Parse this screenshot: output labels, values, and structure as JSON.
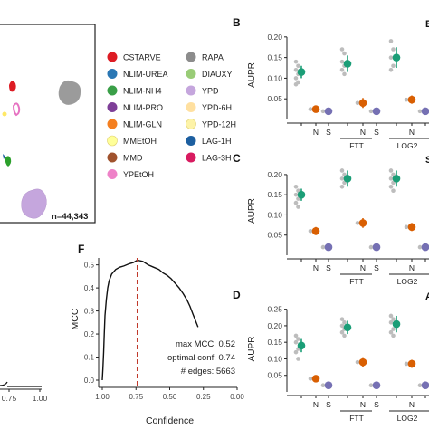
{
  "umap": {
    "count_label": "n=44,343",
    "blobs": [
      {
        "color": "#dd1c24"
      },
      {
        "color": "#9b9b9b"
      },
      {
        "color": "#e673c2"
      },
      {
        "color": "#ffe866"
      },
      {
        "color": "#2ca02c"
      },
      {
        "color": "#1d5fa0"
      },
      {
        "color": "#c5a6dd"
      }
    ]
  },
  "legend": {
    "items": [
      {
        "label": "CSTARVE",
        "color": "#dd1c24"
      },
      {
        "label": "NLIM-UREA",
        "color": "#2a77b4"
      },
      {
        "label": "NLIM-NH4",
        "color": "#3a9f48"
      },
      {
        "label": "NLIM-PRO",
        "color": "#7e3f98"
      },
      {
        "label": "NLIM-GLN",
        "color": "#f47f20"
      },
      {
        "label": "MMEtOH",
        "color": "#ffff99"
      },
      {
        "label": "MMD",
        "color": "#a0522d"
      },
      {
        "label": "YPEtOH",
        "color": "#ee82c8"
      },
      {
        "label": "RAPA",
        "color": "#8c8c8c"
      },
      {
        "label": "DIAUXY",
        "color": "#99cc77"
      },
      {
        "label": "YPD",
        "color": "#c5a6dd"
      },
      {
        "label": "YPD-6H",
        "color": "#ffe0a0"
      },
      {
        "label": "YPD-12H",
        "color": "#fdf3a8"
      },
      {
        "label": "LAG-1H",
        "color": "#1d5fa0"
      },
      {
        "label": "LAG-3H",
        "color": "#d81b60"
      }
    ]
  },
  "panel_e": {
    "x_ticks": [
      "0.75",
      "1.00"
    ]
  },
  "panel_f": {
    "letter": "F",
    "max_mcc": "max MCC: 0.52",
    "optimal_conf": "optimal conf: 0.74",
    "edges": "# edges: 5663"
  },
  "aupr_panels": [
    {
      "letter": "B",
      "title": "BE"
    },
    {
      "letter": "C",
      "title": "StARS"
    },
    {
      "letter": "D",
      "title": "AM"
    }
  ],
  "group_labels": {
    "ftt": "FTT",
    "log2": "LOG2"
  },
  "colors": {
    "green": "#1b9e77",
    "orange": "#d95f02",
    "purple": "#7570b3",
    "gray": "#bdbdbd"
  },
  "chart_data": [
    {
      "type": "line",
      "panel": "F",
      "xlabel": "Confidence",
      "ylabel": "MCC",
      "x_ticks": [
        "1.00",
        "0.75",
        "0.50",
        "0.25",
        "0.00"
      ],
      "y_ticks": [
        "0.0",
        "0.1",
        "0.2",
        "0.3",
        "0.4",
        "0.5"
      ],
      "xlim": [
        1.0,
        0.0
      ],
      "ylim": [
        0,
        0.53
      ],
      "reference_line": {
        "x": 0.74,
        "color": "#c0392b"
      },
      "x": [
        1.0,
        0.995,
        0.99,
        0.985,
        0.98,
        0.97,
        0.96,
        0.95,
        0.93,
        0.9,
        0.87,
        0.84,
        0.8,
        0.77,
        0.74,
        0.7,
        0.66,
        0.62,
        0.58,
        0.55,
        0.52,
        0.49,
        0.46,
        0.43,
        0.4,
        0.37,
        0.35,
        0.33,
        0.31,
        0.29
      ],
      "y": [
        0.0,
        0.05,
        0.12,
        0.2,
        0.28,
        0.35,
        0.4,
        0.43,
        0.46,
        0.48,
        0.49,
        0.495,
        0.505,
        0.51,
        0.52,
        0.515,
        0.5,
        0.49,
        0.48,
        0.465,
        0.455,
        0.44,
        0.42,
        0.4,
        0.375,
        0.345,
        0.32,
        0.29,
        0.26,
        0.23
      ]
    },
    {
      "type": "scatter",
      "panel": "B",
      "title": "BE",
      "ylabel": "AUPR",
      "y_ticks": [
        "0.05",
        "0.10",
        "0.15",
        "0.20"
      ],
      "ylim": [
        0.0,
        0.215
      ],
      "x_ticks": [
        "N",
        "S",
        "N",
        "S",
        "N"
      ],
      "groups": [
        "FTT",
        "LOG2"
      ],
      "series": [
        {
          "points": [
            {
              "pos": 1,
              "color": "green",
              "value": 0.115,
              "err": 0.015,
              "raw": [
                0.14,
                0.13,
                0.12,
                0.11,
                0.1,
                0.09,
                0.085
              ]
            },
            {
              "pos": 2,
              "color": "orange",
              "value": 0.025,
              "err": 0.004
            },
            {
              "pos": 3,
              "color": "purple",
              "value": 0.02,
              "err": 0.003
            },
            {
              "pos": 4,
              "color": "green",
              "value": 0.135,
              "err": 0.02,
              "raw": [
                0.17,
                0.16,
                0.14,
                0.13,
                0.12,
                0.11
              ]
            },
            {
              "pos": 5,
              "color": "orange",
              "value": 0.04,
              "err": 0.012
            },
            {
              "pos": 6,
              "color": "purple",
              "value": 0.02,
              "err": 0.003
            },
            {
              "pos": 7,
              "color": "green",
              "value": 0.15,
              "err": 0.025,
              "raw": [
                0.19,
                0.17,
                0.15,
                0.13,
                0.12
              ]
            },
            {
              "pos": 8,
              "color": "orange",
              "value": 0.048,
              "err": 0.01
            },
            {
              "pos": 9,
              "color": "purple",
              "value": 0.02,
              "err": 0.003
            }
          ]
        }
      ]
    },
    {
      "type": "scatter",
      "panel": "C",
      "title": "StARS",
      "ylabel": "AUPR",
      "y_ticks": [
        "0.05",
        "0.10",
        "0.15",
        "0.20"
      ],
      "ylim": [
        0.0,
        0.22
      ],
      "x_ticks": [
        "N",
        "S",
        "N",
        "S",
        "N"
      ],
      "groups": [
        "FTT",
        "LOG2"
      ],
      "series": [
        {
          "points": [
            {
              "pos": 1,
              "color": "green",
              "value": 0.15,
              "err": 0.015,
              "raw": [
                0.17,
                0.16,
                0.15,
                0.14,
                0.13,
                0.12
              ]
            },
            {
              "pos": 2,
              "color": "orange",
              "value": 0.06,
              "err": 0.01
            },
            {
              "pos": 3,
              "color": "purple",
              "value": 0.02,
              "err": 0.003
            },
            {
              "pos": 4,
              "color": "green",
              "value": 0.19,
              "err": 0.02,
              "raw": [
                0.21,
                0.2,
                0.19,
                0.18,
                0.17
              ]
            },
            {
              "pos": 5,
              "color": "orange",
              "value": 0.08,
              "err": 0.012
            },
            {
              "pos": 6,
              "color": "purple",
              "value": 0.02,
              "err": 0.003
            },
            {
              "pos": 7,
              "color": "green",
              "value": 0.19,
              "err": 0.02,
              "raw": [
                0.21,
                0.2,
                0.19,
                0.18,
                0.17,
                0.16
              ]
            },
            {
              "pos": 8,
              "color": "orange",
              "value": 0.07,
              "err": 0.01
            },
            {
              "pos": 9,
              "color": "purple",
              "value": 0.02,
              "err": 0.003
            }
          ]
        }
      ]
    },
    {
      "type": "scatter",
      "panel": "D",
      "title": "AM",
      "ylabel": "AUPR",
      "y_ticks": [
        "0.05",
        "0.10",
        "0.15",
        "0.20",
        "0.25"
      ],
      "ylim": [
        0.0,
        0.26
      ],
      "x_ticks": [
        "N",
        "S",
        "N",
        "S",
        "N"
      ],
      "groups": [
        "FTT",
        "LOG2"
      ],
      "series": [
        {
          "points": [
            {
              "pos": 1,
              "color": "green",
              "value": 0.14,
              "err": 0.02,
              "raw": [
                0.17,
                0.16,
                0.15,
                0.13,
                0.12,
                0.1
              ]
            },
            {
              "pos": 2,
              "color": "orange",
              "value": 0.04,
              "err": 0.008
            },
            {
              "pos": 3,
              "color": "purple",
              "value": 0.02,
              "err": 0.003
            },
            {
              "pos": 4,
              "color": "green",
              "value": 0.195,
              "err": 0.02,
              "raw": [
                0.22,
                0.21,
                0.2,
                0.19,
                0.18,
                0.17
              ]
            },
            {
              "pos": 5,
              "color": "orange",
              "value": 0.09,
              "err": 0.015
            },
            {
              "pos": 6,
              "color": "purple",
              "value": 0.02,
              "err": 0.003
            },
            {
              "pos": 7,
              "color": "green",
              "value": 0.205,
              "err": 0.025,
              "raw": [
                0.23,
                0.22,
                0.21,
                0.19,
                0.18,
                0.17
              ]
            },
            {
              "pos": 8,
              "color": "orange",
              "value": 0.085,
              "err": 0.012
            },
            {
              "pos": 9,
              "color": "purple",
              "value": 0.02,
              "err": 0.003
            }
          ]
        }
      ]
    }
  ]
}
